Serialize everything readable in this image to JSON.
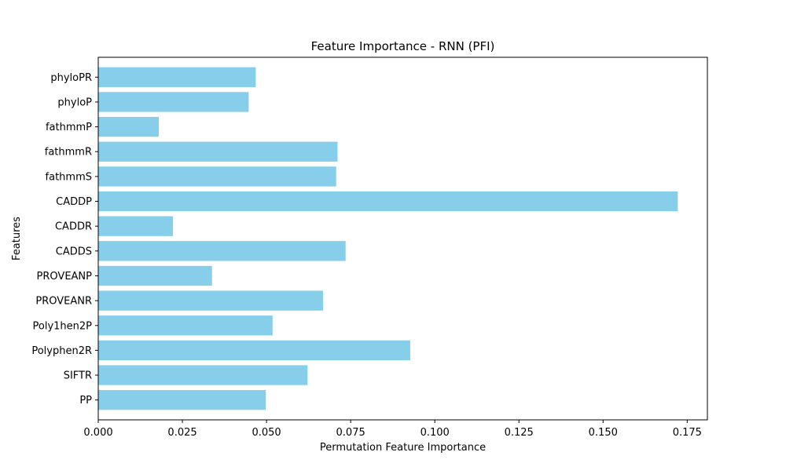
{
  "chart_data": {
    "type": "bar",
    "orientation": "horizontal",
    "title": "Feature Importance - RNN (PFI)",
    "xlabel": "Permutation Feature Importance",
    "ylabel": "Features",
    "xlim": [
      0.0,
      0.181
    ],
    "xticks": [
      0.0,
      0.025,
      0.05,
      0.075,
      0.1,
      0.125,
      0.15,
      0.175
    ],
    "xtick_labels": [
      "0.000",
      "0.025",
      "0.050",
      "0.075",
      "0.100",
      "0.125",
      "0.150",
      "0.175"
    ],
    "categories": [
      "PP",
      "SIFTR",
      "Polyphen2R",
      "Poly1hen2P",
      "PROVEANR",
      "PROVEANP",
      "CADDS",
      "CADDR",
      "CADDP",
      "fathmmS",
      "fathmmR",
      "fathmmP",
      "phyloP",
      "phyloPR"
    ],
    "values": [
      0.0498,
      0.0622,
      0.0927,
      0.0518,
      0.0668,
      0.0338,
      0.0735,
      0.0222,
      0.1722,
      0.0707,
      0.0711,
      0.018,
      0.0447,
      0.0468
    ],
    "bar_color": "#87CEEB",
    "grid": false,
    "legend": "none"
  }
}
